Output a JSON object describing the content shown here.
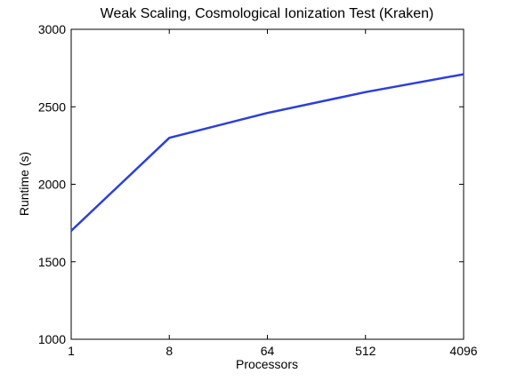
{
  "chart_data": {
    "type": "line",
    "title": "Weak Scaling, Cosmological Ionization Test (Kraken)",
    "xlabel": "Processors",
    "ylabel": "Runtime (s)",
    "x_scale": "log2",
    "x": [
      1,
      8,
      64,
      512,
      4096
    ],
    "xticks": [
      "1",
      "8",
      "64",
      "512",
      "4096"
    ],
    "ylim": [
      1000,
      3000
    ],
    "yticks": [
      "1000",
      "1500",
      "2000",
      "2500",
      "3000"
    ],
    "grid": false,
    "series": [
      {
        "values": [
          1700,
          2300,
          2460,
          2595,
          2710
        ],
        "color": "#2a3fe0"
      }
    ]
  }
}
